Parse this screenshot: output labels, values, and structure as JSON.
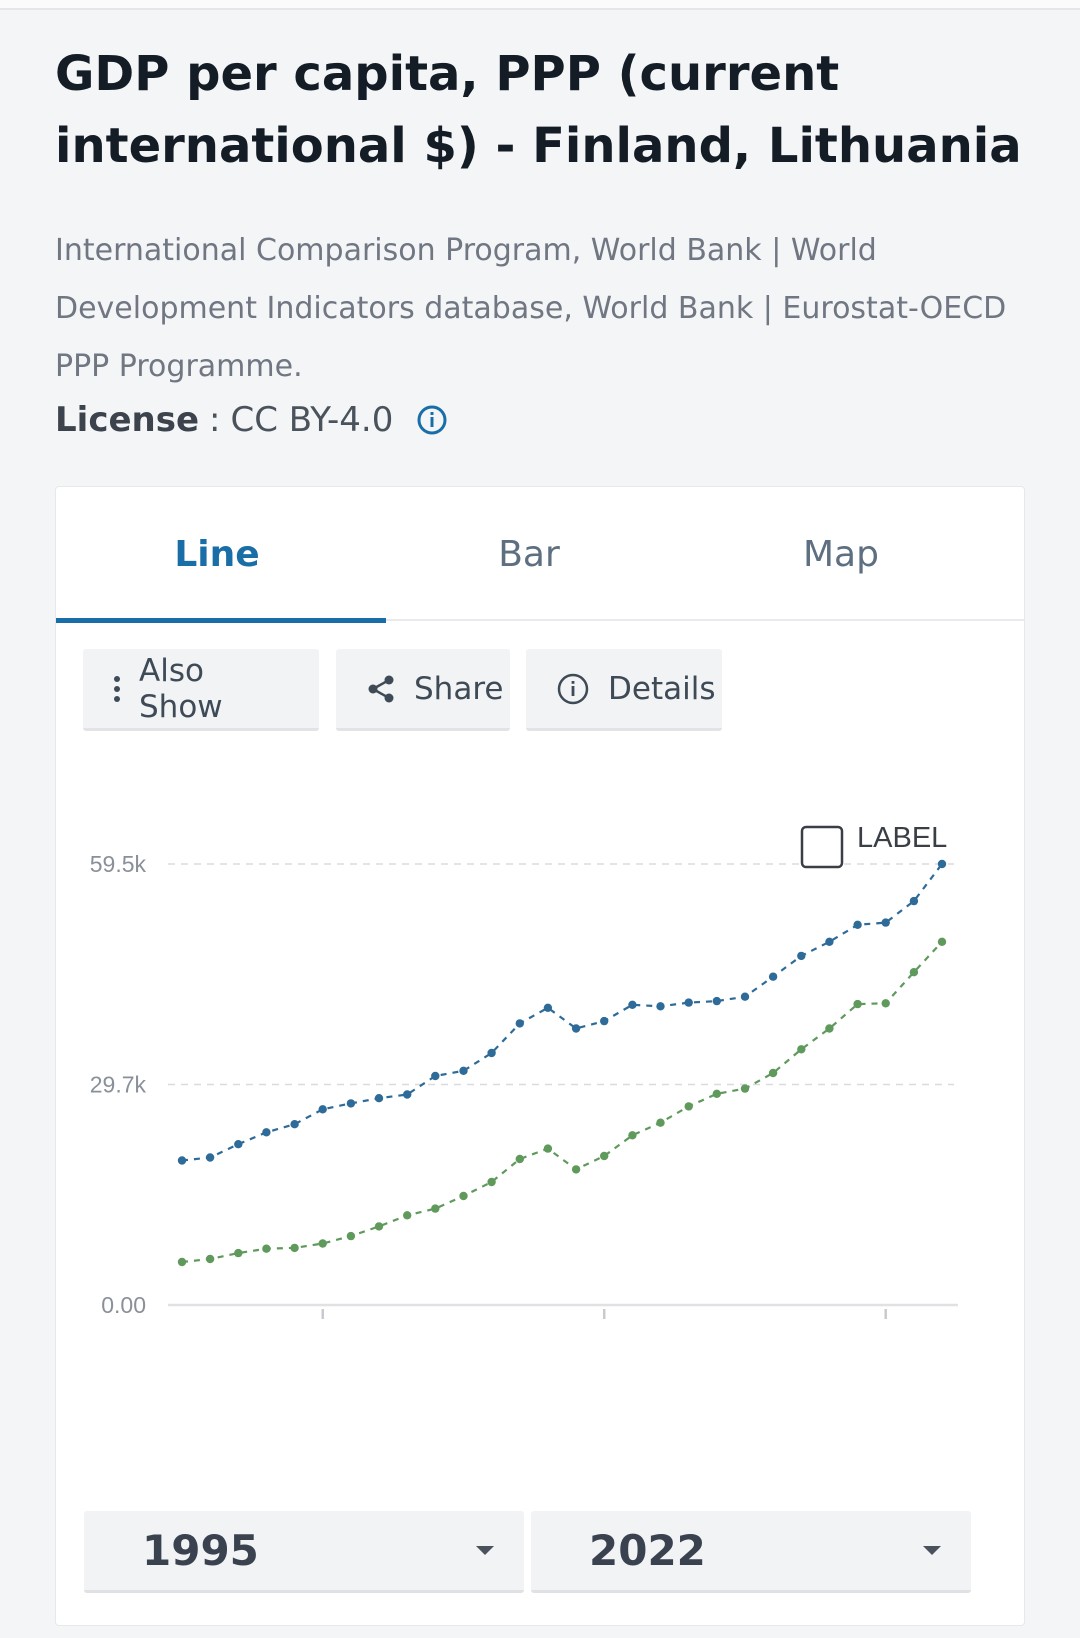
{
  "header": {
    "title": "GDP per capita, PPP (current international $) - Finland, Lithuania",
    "source": "International Comparison Program, World Bank | World Development Indicators database, World Bank | Eurostat-OECD PPP Programme.",
    "license_key": "License",
    "license_sep": " : ",
    "license_value": "CC BY-4.0"
  },
  "tabs": [
    {
      "label": "Line",
      "active": true
    },
    {
      "label": "Bar",
      "active": false
    },
    {
      "label": "Map",
      "active": false
    }
  ],
  "actions": {
    "also_show": "Also Show",
    "share": "Share",
    "details": "Details"
  },
  "label_toggle": "LABEL",
  "range": {
    "from": "1995",
    "to": "2022"
  },
  "colors": {
    "accent": "#1a6ea8",
    "finland": "#2f6b98",
    "lithuania": "#5f9a5c"
  },
  "chart_data": {
    "type": "line",
    "x": [
      1995,
      1996,
      1997,
      1998,
      1999,
      2000,
      2001,
      2002,
      2003,
      2004,
      2005,
      2006,
      2007,
      2008,
      2009,
      2010,
      2011,
      2012,
      2013,
      2014,
      2015,
      2016,
      2017,
      2018,
      2019,
      2020,
      2021,
      2022
    ],
    "series": [
      {
        "values": [
          19500,
          19900,
          21700,
          23300,
          24400,
          26400,
          27200,
          27900,
          28400,
          30900,
          31600,
          34000,
          38000,
          40100,
          37300,
          38300,
          40500,
          40300,
          40800,
          41000,
          41600,
          44300,
          47100,
          49000,
          51300,
          51600,
          54500,
          59500
        ]
      },
      {
        "values": [
          5800,
          6200,
          7000,
          7600,
          7700,
          8300,
          9300,
          10600,
          12100,
          13000,
          14700,
          16600,
          19700,
          21100,
          18300,
          20100,
          22900,
          24600,
          26800,
          28500,
          29200,
          31300,
          34500,
          37300,
          40600,
          40700,
          44900,
          49000
        ]
      }
    ],
    "yticks": [
      "0.00",
      "29.7k",
      "59.5k"
    ],
    "ytick_values": [
      0,
      29750,
      59500
    ],
    "ylim": [
      0,
      59500
    ],
    "grid": true
  }
}
